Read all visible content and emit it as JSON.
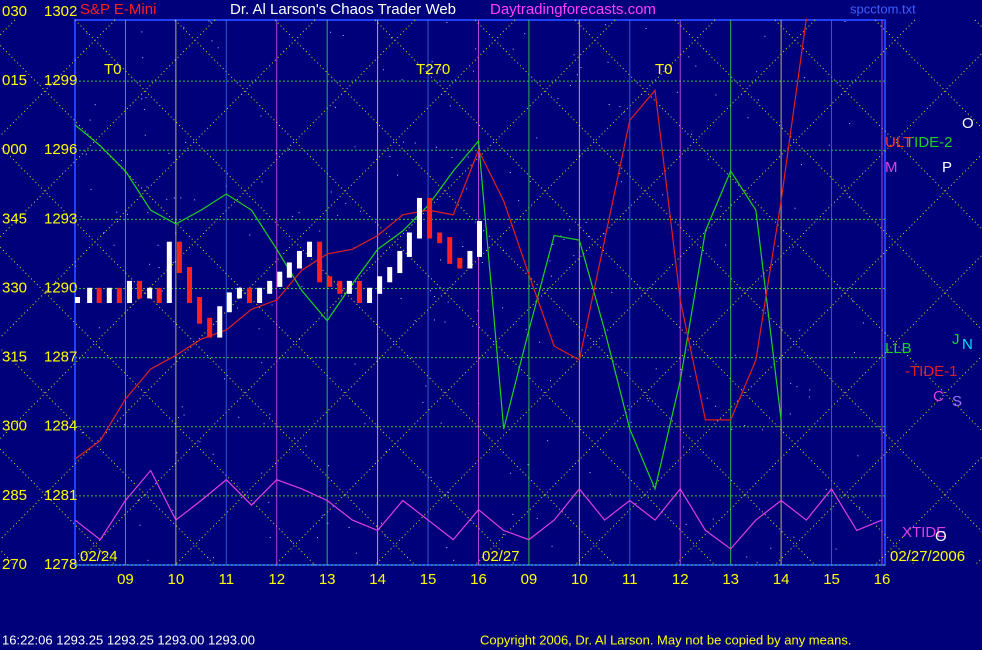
{
  "chart_data": {
    "type": "line",
    "title": "Dr. Al Larson's Chaos Trader Web",
    "instrument": "S&P E-Mini",
    "site": "Daytradingforecasts.com",
    "file": "spcctom.txt",
    "status": "16:22:06  1293.25 1293.25 1293.00 1293.00",
    "copyright": "Copyright 2006, Dr. Al Larson. May not be copied by any means.",
    "dates": [
      "02/24",
      "02/27",
      "02/27/2006"
    ],
    "ylim": [
      1278,
      1302
    ],
    "yticks": [
      1278,
      1281,
      1284,
      1287,
      1290,
      1293,
      1296,
      1299,
      1302
    ],
    "angle_labels": [
      "270",
      "285",
      "300",
      "315",
      "330",
      "345",
      "000",
      "015",
      "030"
    ],
    "xlim": [
      -1,
      15.06
    ],
    "xticks": [
      {
        "value": 0,
        "label": "09"
      },
      {
        "value": 1,
        "label": "10"
      },
      {
        "value": 2,
        "label": "11"
      },
      {
        "value": 3,
        "label": "12"
      },
      {
        "value": 4,
        "label": "13"
      },
      {
        "value": 5,
        "label": "14"
      },
      {
        "value": 6,
        "label": "15"
      },
      {
        "value": 7,
        "label": "16"
      },
      {
        "value": 8,
        "label": "09"
      },
      {
        "value": 9,
        "label": "10"
      },
      {
        "value": 10,
        "label": "11"
      },
      {
        "value": 11,
        "label": "12"
      },
      {
        "value": 12,
        "label": "13"
      },
      {
        "value": 13,
        "label": "14"
      },
      {
        "value": 14,
        "label": "15"
      },
      {
        "value": 15,
        "label": "16"
      }
    ],
    "grid": true,
    "price": {
      "up_color": "#ffffff",
      "down_color": "#ff2020",
      "x": [
        -0.95,
        -0.71,
        -0.52,
        -0.32,
        -0.12,
        0.08,
        0.28,
        0.48,
        0.67,
        0.87,
        1.07,
        1.27,
        1.47,
        1.67,
        1.87,
        2.06,
        2.26,
        2.46,
        2.66,
        2.86,
        3.06,
        3.25,
        3.45,
        3.65,
        3.85,
        4.05,
        4.25,
        4.44,
        4.64,
        4.84,
        5.04,
        5.24,
        5.44,
        5.63,
        5.83,
        6.03,
        6.23,
        6.43,
        6.63,
        6.83,
        7.02
      ],
      "values": [
        1289.5,
        1289.9,
        1289.5,
        1289.9,
        1289.5,
        1290.2,
        1289.7,
        1289.9,
        1289.5,
        1291.9,
        1290.8,
        1289.5,
        1288.6,
        1288.0,
        1289.1,
        1289.7,
        1289.9,
        1289.5,
        1289.9,
        1290.2,
        1290.6,
        1291.0,
        1291.5,
        1291.9,
        1290.4,
        1290.2,
        1289.9,
        1290.2,
        1289.5,
        1289.9,
        1290.4,
        1290.8,
        1291.5,
        1292.3,
        1293.8,
        1292.3,
        1292.1,
        1291.2,
        1291.0,
        1291.5,
        1292.8
      ]
    },
    "x": [
      -1,
      -0.5,
      0,
      0.5,
      1,
      1.5,
      2,
      2.5,
      3,
      3.5,
      4,
      4.5,
      5,
      5.5,
      6,
      6.5,
      7,
      7.5,
      8,
      8.5,
      9,
      9.5,
      10,
      10.5,
      11,
      11.5,
      12,
      12.5,
      13,
      13.5,
      14,
      14.5,
      15
    ],
    "series": [
      {
        "name": "TIDE-2",
        "color": "#20d020",
        "values": [
          1297.1,
          1296.2,
          1295.1,
          1293.4,
          1292.8,
          1293.4,
          1294.1,
          1293.4,
          1291.7,
          1289.9,
          1288.6,
          1290.2,
          1291.7,
          1292.5,
          1293.6,
          1295.1,
          1296.4,
          1283.9,
          1288.2,
          1292.3,
          1292.1,
          1288.2,
          1283.9,
          1281.3,
          1286.0,
          1292.5,
          1295.1,
          1293.4,
          1284.3,
          null,
          null,
          null,
          null
        ]
      },
      {
        "name": "-TIDE-1",
        "color": "#e02020",
        "values": [
          1282.6,
          1283.4,
          1285.2,
          1286.5,
          1287.1,
          1287.8,
          1288.2,
          1289.1,
          1289.5,
          1290.8,
          1291.5,
          1291.7,
          1292.3,
          1293.2,
          1293.4,
          1293.2,
          1296.0,
          1293.8,
          1290.6,
          1287.5,
          1286.9,
          1292.1,
          1297.3,
          1298.6,
          1289.5,
          1284.3,
          1284.3,
          1286.9,
          1293.8,
          1301.7,
          null,
          null,
          null
        ]
      },
      {
        "name": "XTIDE",
        "color": "#e040e0",
        "values": [
          1279.95,
          1279.1,
          1280.8,
          1282.1,
          1279.95,
          1280.8,
          1281.7,
          1280.6,
          1281.7,
          1281.3,
          1280.8,
          1279.95,
          1279.5,
          1280.8,
          1279.95,
          1279.1,
          1280.4,
          1279.5,
          1279.1,
          1279.95,
          1281.3,
          1279.95,
          1280.8,
          1279.95,
          1281.3,
          1279.5,
          1278.7,
          1279.95,
          1280.8,
          1279.95,
          1281.3,
          1279.5,
          1279.95
        ]
      }
    ],
    "annotations": [
      {
        "text": "T0",
        "color": "#ffff00"
      },
      {
        "text": "T270",
        "color": "#ffff00"
      },
      {
        "text": "T0",
        "color": "#ffff00"
      },
      {
        "text": "ULT",
        "color": "#ff3030"
      },
      {
        "text": "M",
        "color": "#e040e0"
      },
      {
        "text": "P",
        "color": "#ffffff"
      },
      {
        "text": "O",
        "color": "#ffffff"
      },
      {
        "text": "LLB",
        "color": "#20d020"
      },
      {
        "text": "J",
        "color": "#20d020"
      },
      {
        "text": "N",
        "color": "#00e0ff"
      },
      {
        "text": "C",
        "color": "#e040e0"
      },
      {
        "text": "S",
        "color": "#a070ff"
      },
      {
        "text": "O",
        "color": "#ffffff"
      }
    ]
  }
}
